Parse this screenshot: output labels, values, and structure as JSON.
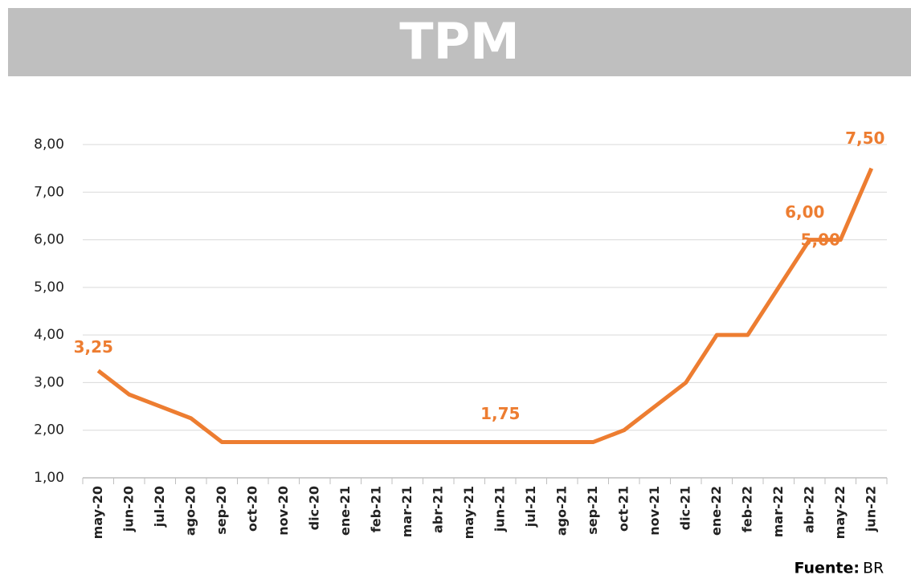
{
  "chart_data": {
    "type": "line",
    "title": "TPM",
    "categories": [
      "may-20",
      "jun-20",
      "jul-20",
      "ago-20",
      "sep-20",
      "oct-20",
      "nov-20",
      "dic-20",
      "ene-21",
      "feb-21",
      "mar-21",
      "abr-21",
      "may-21",
      "jun-21",
      "jul-21",
      "ago-21",
      "sep-21",
      "oct-21",
      "nov-21",
      "dic-21",
      "ene-22",
      "feb-22",
      "mar-22",
      "abr-22",
      "may-22",
      "jun-22"
    ],
    "series": [
      {
        "name": "TPM",
        "color": "#ed7d31",
        "values": [
          3.25,
          2.75,
          2.5,
          2.25,
          1.75,
          1.75,
          1.75,
          1.75,
          1.75,
          1.75,
          1.75,
          1.75,
          1.75,
          1.75,
          1.75,
          1.75,
          1.75,
          2.0,
          2.5,
          3.0,
          4.0,
          4.0,
          5.0,
          6.0,
          6.0,
          7.5
        ],
        "value_labels": [
          "3,25",
          null,
          null,
          null,
          null,
          null,
          null,
          null,
          null,
          null,
          null,
          null,
          null,
          "1,75",
          null,
          null,
          null,
          null,
          null,
          null,
          null,
          null,
          "5,00",
          "6,00",
          null,
          "7,50"
        ]
      }
    ],
    "ylim": [
      1,
      8
    ],
    "yticks": [
      {
        "value": 1,
        "label": "1,00"
      },
      {
        "value": 2,
        "label": "2,00"
      },
      {
        "value": 3,
        "label": "3,00"
      },
      {
        "value": 4,
        "label": "4,00"
      },
      {
        "value": 5,
        "label": "5,00"
      },
      {
        "value": 6,
        "label": "6,00"
      },
      {
        "value": 7,
        "label": "7,00"
      },
      {
        "value": 8,
        "label": "8,00"
      }
    ],
    "grid": true,
    "source_label": "Fuente:",
    "source": "BR"
  }
}
